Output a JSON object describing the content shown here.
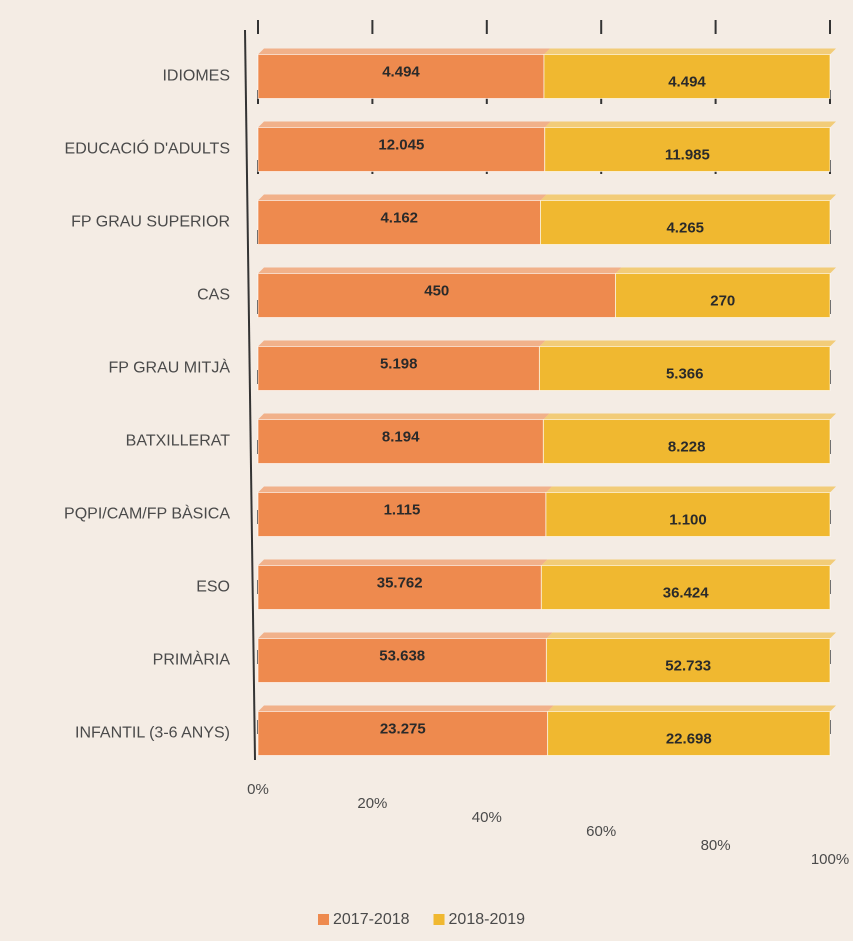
{
  "chart_data": {
    "type": "bar",
    "horizontal": true,
    "stack": "percent",
    "categories": [
      "IDIOMES",
      "EDUCACIÓ D'ADULTS",
      "FP GRAU SUPERIOR",
      "CAS",
      "FP GRAU MITJÀ",
      "BATXILLERAT",
      "PQPI/CAM/FP BÀSICA",
      "ESO",
      "PRIMÀRIA",
      "INFANTIL (3-6 ANYS)"
    ],
    "series": [
      {
        "name": "2017-2018",
        "color": "#ee8a4e",
        "values": [
          4494,
          12045,
          4162,
          450,
          5198,
          8194,
          1115,
          35762,
          53638,
          23275
        ],
        "value_labels": [
          "4.494",
          "12.045",
          "4.162",
          "450",
          "5.198",
          "8.194",
          "1.115",
          "35.762",
          "53.638",
          "23.275"
        ]
      },
      {
        "name": "2018-2019",
        "color": "#f0b830",
        "values": [
          4494,
          11985,
          4265,
          270,
          5366,
          8228,
          1100,
          36424,
          52733,
          22698
        ],
        "value_labels": [
          "4.494",
          "11.985",
          "4.265",
          "270",
          "5.366",
          "8.228",
          "1.100",
          "36.424",
          "52.733",
          "22.698"
        ]
      }
    ],
    "xlim": [
      0,
      100
    ],
    "xticks": [
      {
        "value": 0,
        "label": "0%"
      },
      {
        "value": 20,
        "label": "20%"
      },
      {
        "value": 40,
        "label": "40%"
      },
      {
        "value": 60,
        "label": "60%"
      },
      {
        "value": 80,
        "label": "80%"
      },
      {
        "value": 100,
        "label": "100%"
      }
    ],
    "legend": "bottom"
  }
}
